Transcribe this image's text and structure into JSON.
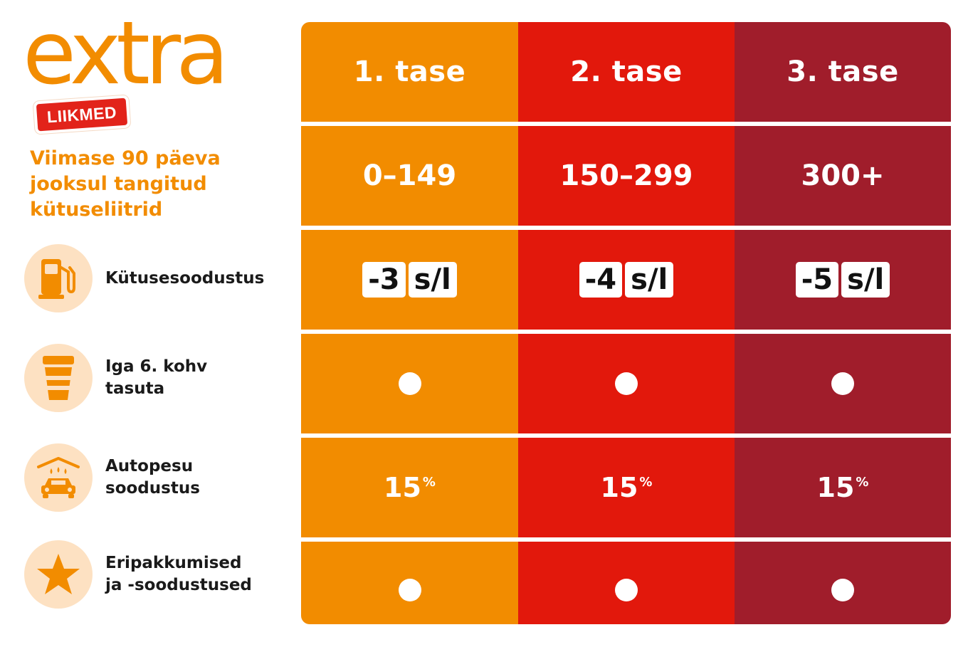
{
  "logo": {
    "word": "extra",
    "badge": "LIIKMED"
  },
  "intro": "Viimase 90 päeva jooksul tangitud kütuseliitrid",
  "features": [
    {
      "label": "Kütusesoodustus",
      "icon": "fuel-pump-icon"
    },
    {
      "label": "Iga 6. kohv\ntasuta",
      "icon": "coffee-cup-icon"
    },
    {
      "label": "Autopesu\nsoodustus",
      "icon": "car-wash-icon"
    },
    {
      "label": "Eripakkumised\nja -soodustused",
      "icon": "star-icon"
    }
  ],
  "tiers": [
    {
      "name": "1. tase",
      "range": "0–149",
      "discount": "-3",
      "unit": "s/l",
      "carwash": "15",
      "carwash_unit": "%",
      "color": "#f28c00"
    },
    {
      "name": "2. tase",
      "range": "150–299",
      "discount": "-4",
      "unit": "s/l",
      "carwash": "15",
      "carwash_unit": "%",
      "color": "#e2180c"
    },
    {
      "name": "3. tase",
      "range": "300+",
      "discount": "-5",
      "unit": "s/l",
      "carwash": "15",
      "carwash_unit": "%",
      "color": "#a01d2b"
    }
  ],
  "colors": {
    "accent": "#f28c00",
    "icon_bg": "#fde1c2"
  }
}
